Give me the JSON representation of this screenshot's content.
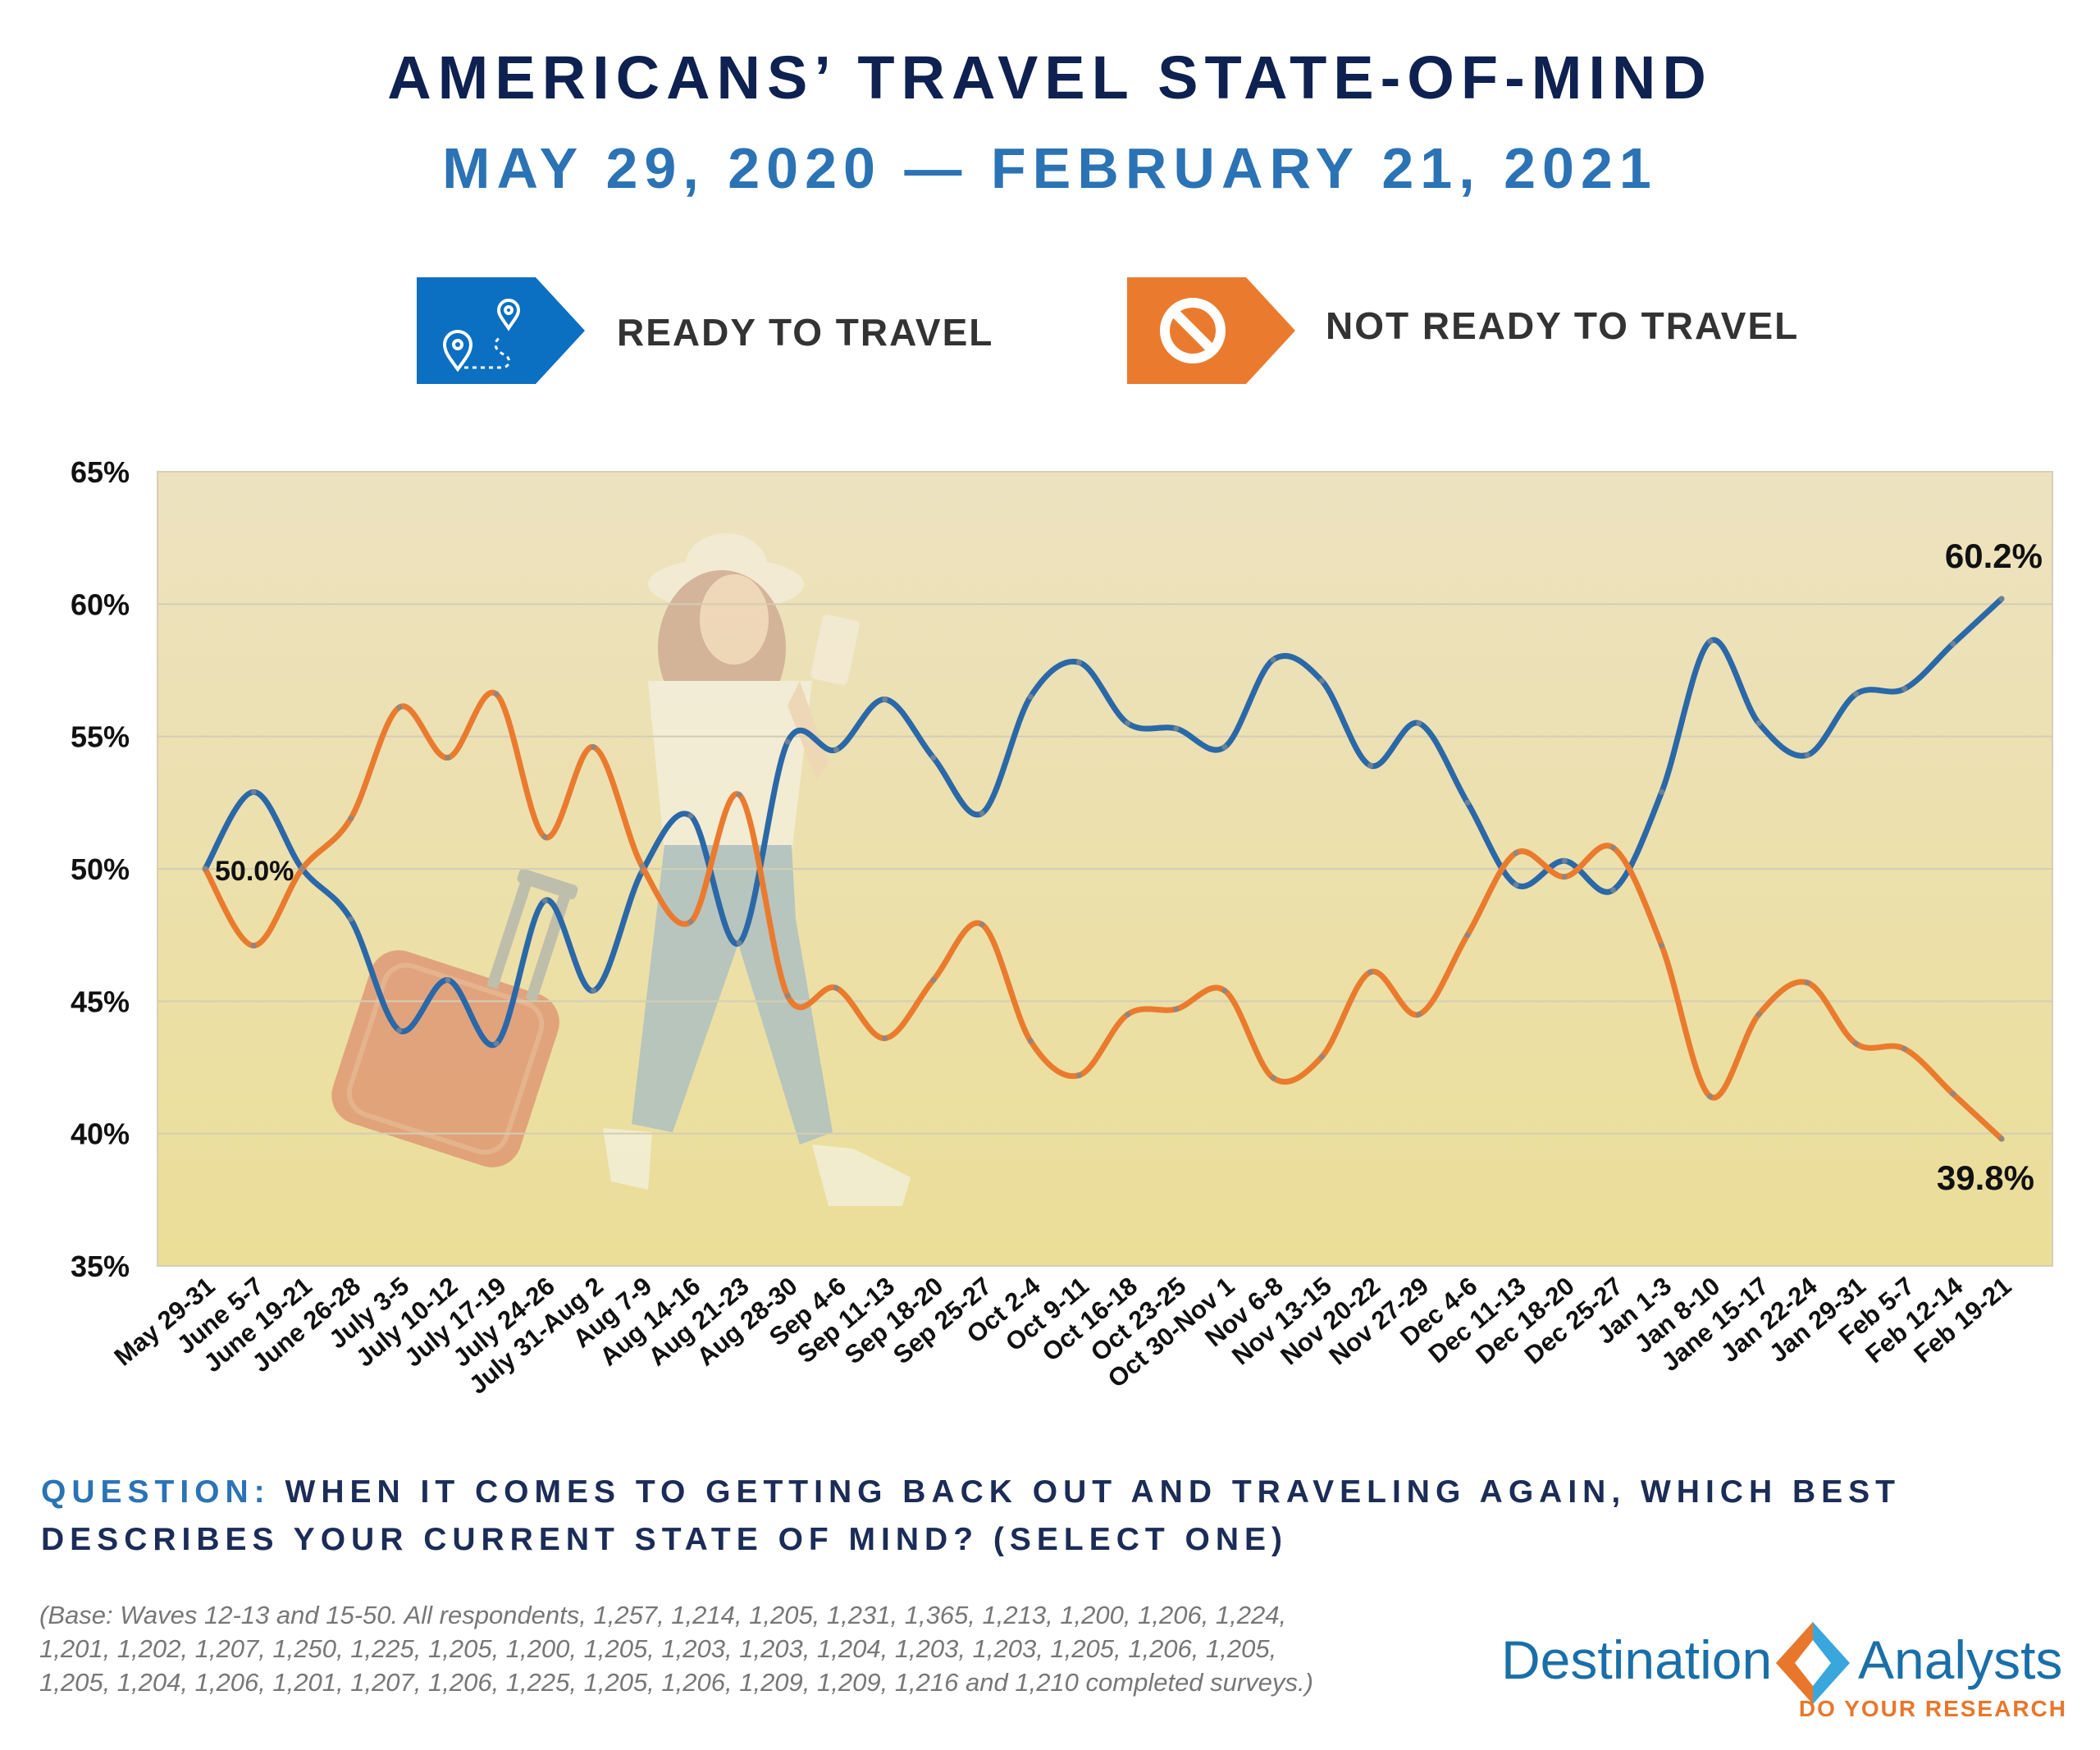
{
  "title": "AMERICANS’ TRAVEL STATE-OF-MIND",
  "subtitle": "MAY 29, 2020 — FEBRUARY 21, 2021",
  "legend": [
    {
      "label": "READY TO TRAVEL",
      "color": "#0b6fc2",
      "icon": "route-map-pin-icon"
    },
    {
      "label": "NOT READY TO TRAVEL",
      "color": "#ea7b2e",
      "icon": "prohibited-icon"
    }
  ],
  "chart_data": {
    "type": "line",
    "title": "AMERICANS’ TRAVEL STATE-OF-MIND",
    "xlabel": "",
    "ylabel": "",
    "ylim": [
      35,
      65
    ],
    "yticks": [
      65,
      60,
      55,
      50,
      45,
      40,
      35
    ],
    "ytick_labels": [
      "65%",
      "60%",
      "55%",
      "50%",
      "45%",
      "40%",
      "35%"
    ],
    "grid": true,
    "categories": [
      "May 29-31",
      "June 5-7",
      "June 19-21",
      "June 26-28",
      "July 3-5",
      "July 10-12",
      "July 17-19",
      "July 24-26",
      "July 31-Aug 2",
      "Aug 7-9",
      "Aug 14-16",
      "Aug 21-23",
      "Aug 28-30",
      "Sep 4-6",
      "Sep 11-13",
      "Sep 18-20",
      "Sep 25-27",
      "Oct 2-4",
      "Oct 9-11",
      "Oct 16-18",
      "Oct 23-25",
      "Oct 30-Nov 1",
      "Nov 6-8",
      "Nov 13-15",
      "Nov 20-22",
      "Nov 27-29",
      "Dec 4-6",
      "Dec 11-13",
      "Dec 18-20",
      "Dec 25-27",
      "Jan 1-3",
      "Jan 8-10",
      "Jane 15-17",
      "Jan 22-24",
      "Jan 29-31",
      "Feb 5-7",
      "Feb 12-14",
      "Feb 19-21"
    ],
    "series": [
      {
        "name": "READY TO TRAVEL",
        "color": "#2a68a8",
        "values": [
          50.0,
          52.9,
          50.0,
          48.1,
          43.9,
          45.8,
          43.4,
          48.8,
          45.4,
          49.9,
          52.0,
          47.2,
          54.8,
          54.5,
          56.4,
          54.2,
          52.1,
          56.5,
          57.8,
          55.5,
          55.3,
          54.6,
          57.9,
          57.1,
          53.9,
          55.5,
          52.5,
          49.4,
          50.3,
          49.2,
          52.9,
          58.6,
          55.5,
          54.3,
          56.6,
          56.8,
          58.5,
          60.2
        ]
      },
      {
        "name": "NOT READY TO TRAVEL",
        "color": "#ea7b2e",
        "values": [
          50.0,
          47.1,
          50.0,
          51.9,
          56.1,
          54.2,
          56.6,
          51.2,
          54.6,
          50.1,
          48.0,
          52.8,
          45.2,
          45.5,
          43.6,
          45.8,
          47.9,
          43.5,
          42.2,
          44.5,
          44.7,
          45.4,
          42.1,
          42.9,
          46.1,
          44.5,
          47.5,
          50.6,
          49.7,
          50.8,
          47.1,
          41.4,
          44.5,
          45.7,
          43.4,
          43.2,
          41.5,
          39.8
        ]
      }
    ],
    "annotations": [
      {
        "text": "50.0%",
        "series": "READY TO TRAVEL",
        "category": "May 29-31"
      },
      {
        "text": "60.2%",
        "series": "READY TO TRAVEL",
        "category": "Feb 19-21"
      },
      {
        "text": "39.8%",
        "series": "NOT READY TO TRAVEL",
        "category": "Feb 19-21"
      }
    ]
  },
  "question": {
    "label": "QUESTION:",
    "text": "WHEN IT COMES TO GETTING BACK OUT AND TRAVELING AGAIN, WHICH BEST DESCRIBES YOUR CURRENT STATE OF MIND? (SELECT ONE)"
  },
  "base_note": "(Base: Waves 12-13 and 15-50. All respondents, 1,257, 1,214, 1,205, 1,231, 1,365, 1,213, 1,200, 1,206, 1,224, 1,201, 1,202, 1,207, 1,250, 1,225, 1,205, 1,200, 1,205, 1,203, 1,203, 1,204, 1,203, 1,203, 1,205, 1,206, 1,205, 1,205, 1,204, 1,206, 1,201, 1,207, 1,206, 1,225, 1,205, 1,206, 1,209, 1,209, 1,216 and 1,210 completed surveys.)",
  "logo": {
    "word1": "Destination",
    "word2": "Analysts",
    "tagline": "DO YOUR RESEARCH"
  },
  "colors": {
    "title": "#0e2150",
    "subtitle": "#2b73b4",
    "plot_background": "#ede2bd"
  }
}
